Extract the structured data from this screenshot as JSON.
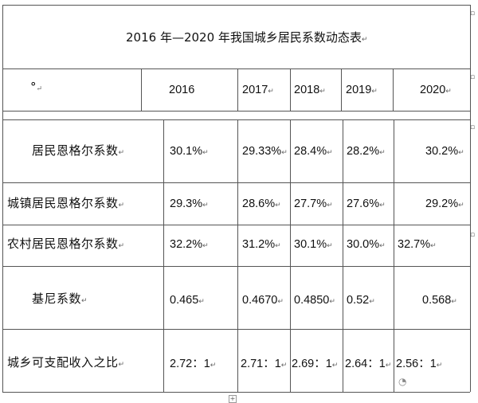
{
  "title": "2016 年—2020 年我国城乡居民系数动态表",
  "corner_mark": "°",
  "years": [
    "2016",
    "2017",
    "2018",
    "2019",
    "2020"
  ],
  "rows": [
    {
      "label": "居民恩格尔系数",
      "values": [
        "30.1%",
        "29.33%",
        "28.4%",
        "28.2%",
        "30.2%"
      ]
    },
    {
      "label": "城镇居民恩格尔系数",
      "values": [
        "29.3%",
        "28.6%",
        "27.7%",
        "27.6%",
        "29.2%"
      ]
    },
    {
      "label": "农村居民恩格尔系数",
      "values": [
        "32.2%",
        "31.2%",
        "30.1%",
        "30.0%",
        "32.7%"
      ]
    },
    {
      "label": "基尼系数",
      "values": [
        "0.465",
        "0.4670",
        "0.4850",
        "0.52",
        "0.568"
      ]
    },
    {
      "label": "城乡可支配收入之比",
      "values": [
        "2.72：1",
        "2.71：1",
        "2.69：1",
        "2.64：1",
        "2.56：1"
      ]
    }
  ],
  "para_mark": "↵"
}
